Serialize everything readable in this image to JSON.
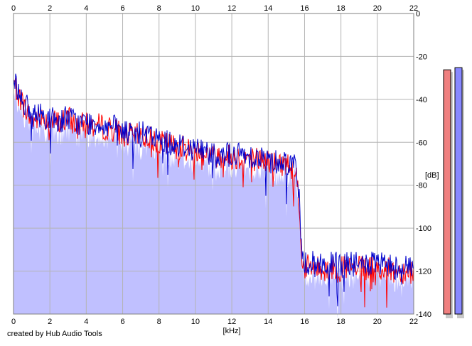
{
  "chart_data": {
    "type": "area",
    "x": {
      "label": "[kHz]",
      "min": 0,
      "max": 22,
      "ticks": [
        0,
        2,
        4,
        6,
        8,
        10,
        12,
        14,
        16,
        18,
        20,
        22
      ]
    },
    "y": {
      "label": "[dB]",
      "min": -140,
      "max": 0,
      "ticks": [
        "0",
        "-20",
        "-40",
        "-60",
        "-80",
        "-100",
        "-120",
        "-140"
      ]
    },
    "grid": true,
    "series": [
      {
        "color": "#ff0000",
        "points": [
          [
            0,
            -32
          ],
          [
            0.5,
            -42
          ],
          [
            1,
            -50
          ],
          [
            1.5,
            -48
          ],
          [
            2,
            -50
          ],
          [
            2.5,
            -51
          ],
          [
            3,
            -49
          ],
          [
            3.5,
            -52
          ],
          [
            4,
            -52
          ],
          [
            4.5,
            -52
          ],
          [
            5,
            -53
          ],
          [
            5.5,
            -54
          ],
          [
            6,
            -56
          ],
          [
            6.5,
            -57
          ],
          [
            7,
            -57
          ],
          [
            7.5,
            -58
          ],
          [
            8,
            -60
          ],
          [
            8.5,
            -61
          ],
          [
            9,
            -62
          ],
          [
            9.5,
            -63
          ],
          [
            10,
            -64
          ],
          [
            10.5,
            -65
          ],
          [
            11,
            -66
          ],
          [
            11.5,
            -66
          ],
          [
            12,
            -67
          ],
          [
            12.5,
            -67
          ],
          [
            13,
            -67
          ],
          [
            13.5,
            -68
          ],
          [
            14,
            -69
          ],
          [
            14.5,
            -70
          ],
          [
            15,
            -70
          ],
          [
            15.5,
            -72
          ],
          [
            15.7,
            -86
          ],
          [
            15.8,
            -112
          ],
          [
            16,
            -118
          ],
          [
            17,
            -119
          ],
          [
            18,
            -119
          ],
          [
            19,
            -119
          ],
          [
            20,
            -119
          ],
          [
            21,
            -120
          ],
          [
            22,
            -120
          ]
        ]
      },
      {
        "color": "#0000cc",
        "points": [
          [
            0,
            -30
          ],
          [
            0.5,
            -40
          ],
          [
            1,
            -48
          ],
          [
            1.5,
            -47
          ],
          [
            2,
            -49
          ],
          [
            2.5,
            -50
          ],
          [
            3,
            -48
          ],
          [
            3.5,
            -51
          ],
          [
            4,
            -51
          ],
          [
            4.5,
            -51
          ],
          [
            5,
            -52
          ],
          [
            5.5,
            -53
          ],
          [
            6,
            -55
          ],
          [
            6.5,
            -56
          ],
          [
            7,
            -56
          ],
          [
            7.5,
            -57
          ],
          [
            8,
            -59
          ],
          [
            8.5,
            -60
          ],
          [
            9,
            -61
          ],
          [
            9.5,
            -62
          ],
          [
            10,
            -63
          ],
          [
            10.5,
            -64
          ],
          [
            11,
            -65
          ],
          [
            11.5,
            -65
          ],
          [
            12,
            -66
          ],
          [
            12.5,
            -66
          ],
          [
            13,
            -66
          ],
          [
            13.5,
            -67
          ],
          [
            14,
            -68
          ],
          [
            14.5,
            -69
          ],
          [
            15,
            -69
          ],
          [
            15.5,
            -70
          ],
          [
            15.7,
            -84
          ],
          [
            15.8,
            -110
          ],
          [
            16,
            -116
          ],
          [
            17,
            -117
          ],
          [
            18,
            -117
          ],
          [
            19,
            -117
          ],
          [
            20,
            -117
          ],
          [
            21,
            -118
          ],
          [
            22,
            -118
          ]
        ]
      }
    ],
    "level_meters": [
      {
        "color": "#f08080",
        "level_db": -13
      },
      {
        "color": "#8888ff",
        "level_db": -12
      }
    ],
    "fill_color": "#c0c0ff",
    "grid_color": "#b4b4b4"
  },
  "footer": {
    "credit": "created by Hub Audio Tools"
  }
}
